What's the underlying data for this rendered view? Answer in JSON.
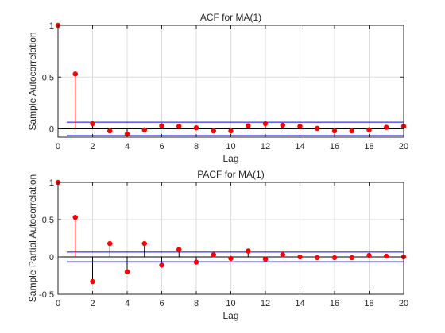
{
  "chart_data": [
    {
      "type": "stem",
      "title": "ACF for MA(1)",
      "xlabel": "Lag",
      "ylabel": "Sample Autocorrelation",
      "xlim": [
        0,
        20
      ],
      "ylim": [
        -0.08,
        1
      ],
      "xticks": [
        "0",
        "2",
        "4",
        "6",
        "8",
        "10",
        "12",
        "14",
        "16",
        "18",
        "20"
      ],
      "yticks": [
        "0",
        "0.5",
        "1"
      ],
      "grid": true,
      "confidence_bounds": [
        0.065,
        -0.065
      ],
      "series": [
        {
          "x": [
            0,
            1,
            2,
            3,
            4,
            5,
            6,
            7,
            8,
            9,
            10,
            11,
            12,
            13,
            14,
            15,
            16,
            17,
            18,
            19,
            20
          ],
          "values": [
            1.0,
            0.53,
            0.05,
            -0.02,
            -0.05,
            -0.01,
            0.03,
            0.025,
            0.01,
            -0.02,
            -0.02,
            0.03,
            0.05,
            0.035,
            0.025,
            0.005,
            -0.02,
            -0.02,
            -0.01,
            0.015,
            0.025
          ]
        }
      ]
    },
    {
      "type": "stem",
      "title": "PACF for MA(1)",
      "xlabel": "Lag",
      "ylabel": "Sample Partial Autocorrelation",
      "xlim": [
        0,
        20
      ],
      "ylim": [
        -0.5,
        1
      ],
      "xticks": [
        "0",
        "2",
        "4",
        "6",
        "8",
        "10",
        "12",
        "14",
        "16",
        "18",
        "20"
      ],
      "yticks": [
        "-0.5",
        "0",
        "0.5",
        "1"
      ],
      "grid": true,
      "confidence_bounds": [
        0.065,
        -0.065
      ],
      "series": [
        {
          "x": [
            0,
            1,
            2,
            3,
            4,
            5,
            6,
            7,
            8,
            9,
            10,
            11,
            12,
            13,
            14,
            15,
            16,
            17,
            18,
            19,
            20
          ],
          "values": [
            1.0,
            0.53,
            -0.33,
            0.18,
            -0.2,
            0.18,
            -0.11,
            0.1,
            -0.07,
            0.03,
            -0.02,
            0.08,
            -0.03,
            0.03,
            0.0,
            -0.01,
            -0.01,
            -0.01,
            0.02,
            0.01,
            0.0
          ]
        }
      ]
    }
  ],
  "colors": {
    "stem": "#ff0000",
    "bounds": "#0000ff",
    "zero_line": "#000000",
    "grid": "#dcdcdc",
    "axis": "#262626"
  }
}
